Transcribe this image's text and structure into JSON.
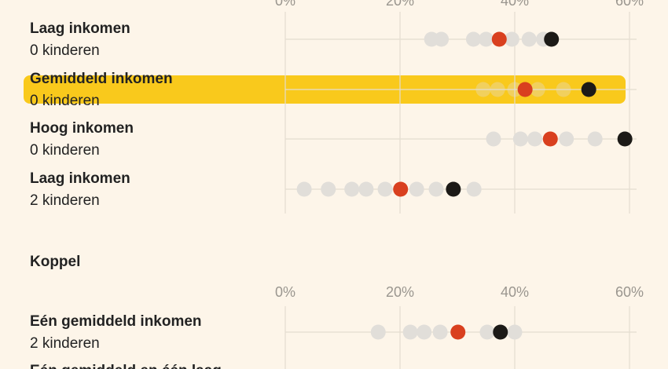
{
  "chart_data": [
    {
      "type": "dot",
      "xlim": [
        0,
        60
      ],
      "xticks": [
        {
          "value": 0,
          "label": "0%"
        },
        {
          "value": 20,
          "label": "20%"
        },
        {
          "value": 40,
          "label": "40%"
        },
        {
          "value": 60,
          "label": "60%"
        }
      ],
      "colors": {
        "others": "#e1ded9",
        "red": "#d9401f",
        "black": "#1c1a17",
        "highlight": "#f9c91c"
      },
      "rows": [
        {
          "label1": "Laag inkomen",
          "label2": "0 kinderen",
          "others": [
            25.5,
            27.2,
            32.8,
            35,
            39.5,
            42.5,
            45
          ],
          "red": 37.3,
          "black": 46.4
        },
        {
          "label1": "Gemiddeld inkomen",
          "label2": "0 kinderen",
          "highlighted": true,
          "others": [
            34.5,
            37,
            40,
            44,
            48.5
          ],
          "red": 41.8,
          "black": 52.9
        },
        {
          "label1": "Hoog inkomen",
          "label2": "0 kinderen",
          "others": [
            36.3,
            41,
            43.5,
            49,
            54
          ],
          "red": 46.2,
          "black": 59.2
        },
        {
          "label1": "Laag inkomen",
          "label2": "2 kinderen",
          "others": [
            3.3,
            7.5,
            11.6,
            14.1,
            17.4,
            22.9,
            26.3,
            32.9
          ],
          "red": 20.1,
          "black": 29.3
        }
      ]
    },
    {
      "type": "dot",
      "title": "Koppel",
      "xlim": [
        0,
        60
      ],
      "xticks": [
        {
          "value": 0,
          "label": "0%"
        },
        {
          "value": 20,
          "label": "20%"
        },
        {
          "value": 40,
          "label": "40%"
        },
        {
          "value": 60,
          "label": "60%"
        }
      ],
      "colors": {
        "others": "#e1ded9",
        "red": "#d9401f",
        "black": "#1c1a17",
        "highlight": "#f9c91c"
      },
      "rows": [
        {
          "label1": "Eén gemiddeld inkomen",
          "label2": "2 kinderen",
          "others": [
            16.2,
            21.8,
            24.2,
            27,
            35.2,
            40
          ],
          "red": 30.1,
          "black": 37.5
        },
        {
          "label1": "Eén gemiddeld en één laag"
        }
      ]
    }
  ]
}
